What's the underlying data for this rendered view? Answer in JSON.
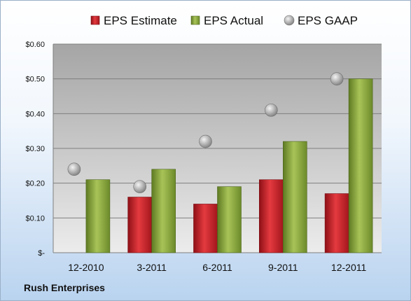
{
  "company": "Rush Enterprises",
  "chart_data": {
    "type": "bar",
    "title": "",
    "xlabel": "",
    "ylabel": "",
    "categories": [
      "12-2010",
      "3-2011",
      "6-2011",
      "9-2011",
      "12-2011"
    ],
    "series": [
      {
        "name": "EPS Estimate",
        "kind": "bar",
        "color": "#c8202a",
        "values": [
          null,
          0.16,
          0.14,
          0.21,
          0.17
        ]
      },
      {
        "name": "EPS Actual",
        "kind": "bar",
        "color": "#8aa63c",
        "values": [
          0.21,
          0.24,
          0.19,
          0.32,
          0.5
        ]
      },
      {
        "name": "EPS GAAP",
        "kind": "marker",
        "color": "#a9a9a9",
        "values": [
          0.24,
          0.19,
          0.32,
          0.41,
          0.5
        ]
      }
    ],
    "ylim": [
      0,
      0.6
    ],
    "yticks": [
      0,
      0.1,
      0.2,
      0.3,
      0.4,
      0.5,
      0.6
    ],
    "ytick_labels": [
      "$-",
      "$0.10",
      "$0.20",
      "$0.30",
      "$0.40",
      "$0.50",
      "$0.60"
    ],
    "grid": true,
    "legend_position": "top"
  }
}
